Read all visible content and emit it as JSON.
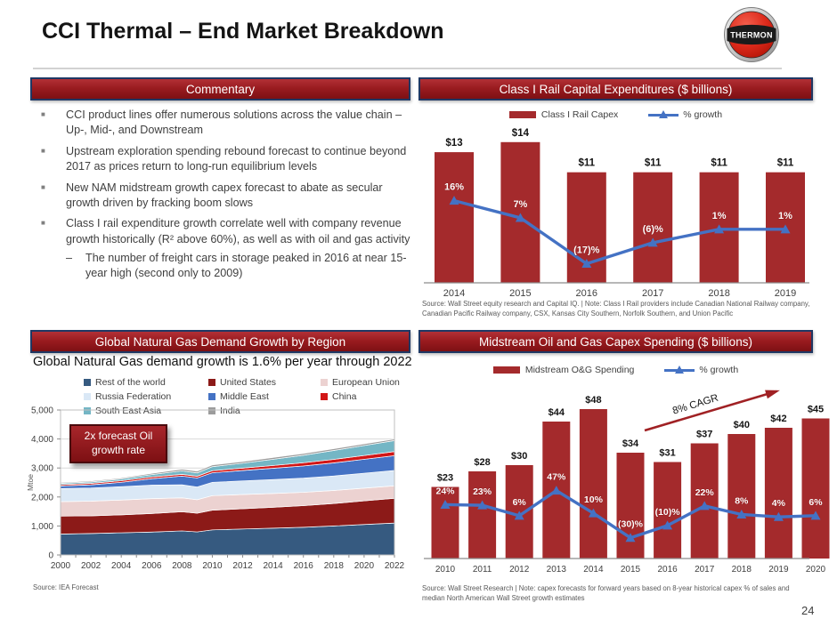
{
  "slide": {
    "title": "CCI Thermal – End Market Breakdown",
    "page_number": "24",
    "logo_text": "THERMON",
    "accent_color": "#A42A2C",
    "header_border_color": "#1F3864",
    "growth_line_color": "#4472C4"
  },
  "panels": {
    "commentary": {
      "header": "Commentary",
      "bullets": [
        {
          "level": 1,
          "text": "CCI product lines offer numerous solutions across the value chain – Up-, Mid-, and Downstream"
        },
        {
          "level": 1,
          "text": "Upstream exploration spending rebound forecast to continue beyond 2017 as prices return to long-run equilibrium levels"
        },
        {
          "level": 1,
          "text": "New NAM midstream growth capex forecast to abate as secular growth driven by fracking boom slows"
        },
        {
          "level": 1,
          "text": "Class I rail expenditure growth correlate well with company revenue growth historically (R² above 60%), as well as with oil and gas activity"
        },
        {
          "level": 2,
          "text": "The number of freight cars in storage peaked in 2016 at near 15-year high (second only to 2009)"
        }
      ]
    },
    "rail": {
      "header": "Class I Rail Capital Expenditures ($ billions)",
      "legend": [
        {
          "label": "Class I Rail Capex",
          "color": "#A42A2C",
          "swatch": "bar"
        },
        {
          "label": "% growth",
          "color": "#4472C4",
          "swatch": "line"
        }
      ],
      "source": "Source: Wall Street equity research and Capital IQ. | Note: Class I Rail providers include Canadian National Railway company, Canadian Pacific Railway company, CSX, Kansas City Southern, Norfolk Southern, and Union Pacific"
    },
    "gas": {
      "header": "Global Natural Gas Demand Growth by Region",
      "subtitle": "Global Natural Gas demand growth is 1.6% per year through 2022",
      "callout": "2x forecast Oil growth rate",
      "source": "Source: IEA Forecast",
      "legend_columns": [
        [
          {
            "label": "Rest of the world",
            "color": "#365A80"
          },
          {
            "label": "Russia Federation",
            "color": "#DAE8F6"
          },
          {
            "label": "South East Asia",
            "color": "#74B6C5"
          }
        ],
        [
          {
            "label": "United States",
            "color": "#8C1A18"
          },
          {
            "label": "Middle East",
            "color": "#4472C4"
          },
          {
            "label": "India",
            "color": "#9C9C9C"
          }
        ],
        [
          {
            "label": "European Union",
            "color": "#ECD2D1"
          },
          {
            "label": "China",
            "color": "#D21616"
          }
        ]
      ]
    },
    "midstream": {
      "header": "Midstream Oil and Gas Capex Spending ($ billions)",
      "legend": [
        {
          "label": "Midstream O&G Spending",
          "color": "#A42A2C",
          "swatch": "bar"
        },
        {
          "label": "% growth",
          "color": "#4472C4",
          "swatch": "line"
        }
      ],
      "annotation": "8% CAGR",
      "source": "Source: Wall Street Research | Note: capex forecasts for forward years based on 8-year historical capex % of sales and median North American Wall Street growth estimates"
    }
  },
  "chart_data": [
    {
      "id": "rail",
      "type": "bar+line",
      "title": "Class I Rail Capital Expenditures ($ billions)",
      "categories": [
        "2014",
        "2015",
        "2016",
        "2017",
        "2018",
        "2019"
      ],
      "bar_color": "#A42A2C",
      "line_color": "#4472C4",
      "series": [
        {
          "name": "Class I Rail Capex",
          "type": "bar",
          "unit": "$ billions",
          "values": [
            13,
            14,
            11,
            11,
            11,
            11
          ],
          "labels": [
            "$13",
            "$14",
            "$11",
            "$11",
            "$11",
            "$11"
          ]
        },
        {
          "name": "% growth",
          "type": "line",
          "unit": "%",
          "values": [
            16,
            7,
            -17,
            -6,
            1,
            1
          ],
          "labels": [
            "16%",
            "7%",
            "(17)%",
            "(6)%",
            "1%",
            "1%"
          ]
        }
      ]
    },
    {
      "id": "gas",
      "type": "area",
      "title": "Global Natural Gas Demand Growth by Region",
      "ylabel": "Mtoe",
      "ylim": [
        0,
        5000
      ],
      "yticks": [
        "0",
        "1,000",
        "2,000",
        "3,000",
        "4,000",
        "5,000"
      ],
      "x": [
        2000,
        2002,
        2004,
        2006,
        2008,
        2009,
        2010,
        2012,
        2014,
        2016,
        2018,
        2020,
        2022
      ],
      "xticklabels": [
        2000,
        2002,
        2004,
        2006,
        2008,
        2010,
        2012,
        2014,
        2016,
        2018,
        2020,
        2022
      ],
      "series": [
        {
          "name": "Rest of the world",
          "color": "#365A80",
          "values": [
            720,
            740,
            765,
            790,
            830,
            795,
            865,
            895,
            925,
            955,
            1000,
            1050,
            1100
          ]
        },
        {
          "name": "United States",
          "color": "#8C1A18",
          "values": [
            620,
            610,
            620,
            640,
            660,
            645,
            680,
            700,
            720,
            745,
            775,
            815,
            855
          ]
        },
        {
          "name": "European Union",
          "color": "#ECD2D1",
          "values": [
            500,
            505,
            510,
            515,
            480,
            465,
            500,
            490,
            475,
            460,
            450,
            440,
            430
          ]
        },
        {
          "name": "Russia Federation",
          "color": "#DAE8F6",
          "values": [
            450,
            455,
            460,
            465,
            450,
            440,
            460,
            470,
            480,
            490,
            500,
            515,
            530
          ]
        },
        {
          "name": "Middle East",
          "color": "#4472C4",
          "values": [
            90,
            110,
            150,
            220,
            300,
            310,
            330,
            360,
            390,
            420,
            450,
            480,
            510
          ]
        },
        {
          "name": "China",
          "color": "#D21616",
          "values": [
            45,
            50,
            55,
            60,
            60,
            60,
            70,
            80,
            95,
            110,
            120,
            130,
            140
          ]
        },
        {
          "name": "South East Asia",
          "color": "#74B6C5",
          "values": [
            45,
            50,
            60,
            80,
            120,
            115,
            140,
            170,
            215,
            260,
            310,
            345,
            380
          ]
        },
        {
          "name": "India",
          "color": "#9C9C9C",
          "values": [
            30,
            32,
            35,
            45,
            60,
            60,
            60,
            60,
            60,
            60,
            60,
            60,
            55
          ]
        }
      ]
    },
    {
      "id": "midstream",
      "type": "bar+line",
      "title": "Midstream Oil and Gas Capex Spending ($ billions)",
      "categories": [
        "2010",
        "2011",
        "2012",
        "2013",
        "2014",
        "2015",
        "2016",
        "2017",
        "2018",
        "2019",
        "2020"
      ],
      "bar_color": "#A42A2C",
      "line_color": "#4472C4",
      "annotation": "8% CAGR",
      "series": [
        {
          "name": "Midstream O&G Spending",
          "type": "bar",
          "unit": "$ billions",
          "values": [
            23,
            28,
            30,
            44,
            48,
            34,
            31,
            37,
            40,
            42,
            45
          ],
          "labels": [
            "$23",
            "$28",
            "$30",
            "$44",
            "$48",
            "$34",
            "$31",
            "$37",
            "$40",
            "$42",
            "$45"
          ]
        },
        {
          "name": "% growth",
          "type": "line",
          "unit": "%",
          "values": [
            24,
            23,
            6,
            47,
            10,
            -30,
            -10,
            22,
            8,
            4,
            6
          ],
          "labels": [
            "24%",
            "23%",
            "6%",
            "47%",
            "10%",
            "(30)%",
            "(10)%",
            "22%",
            "8%",
            "4%",
            "6%"
          ]
        }
      ]
    }
  ]
}
